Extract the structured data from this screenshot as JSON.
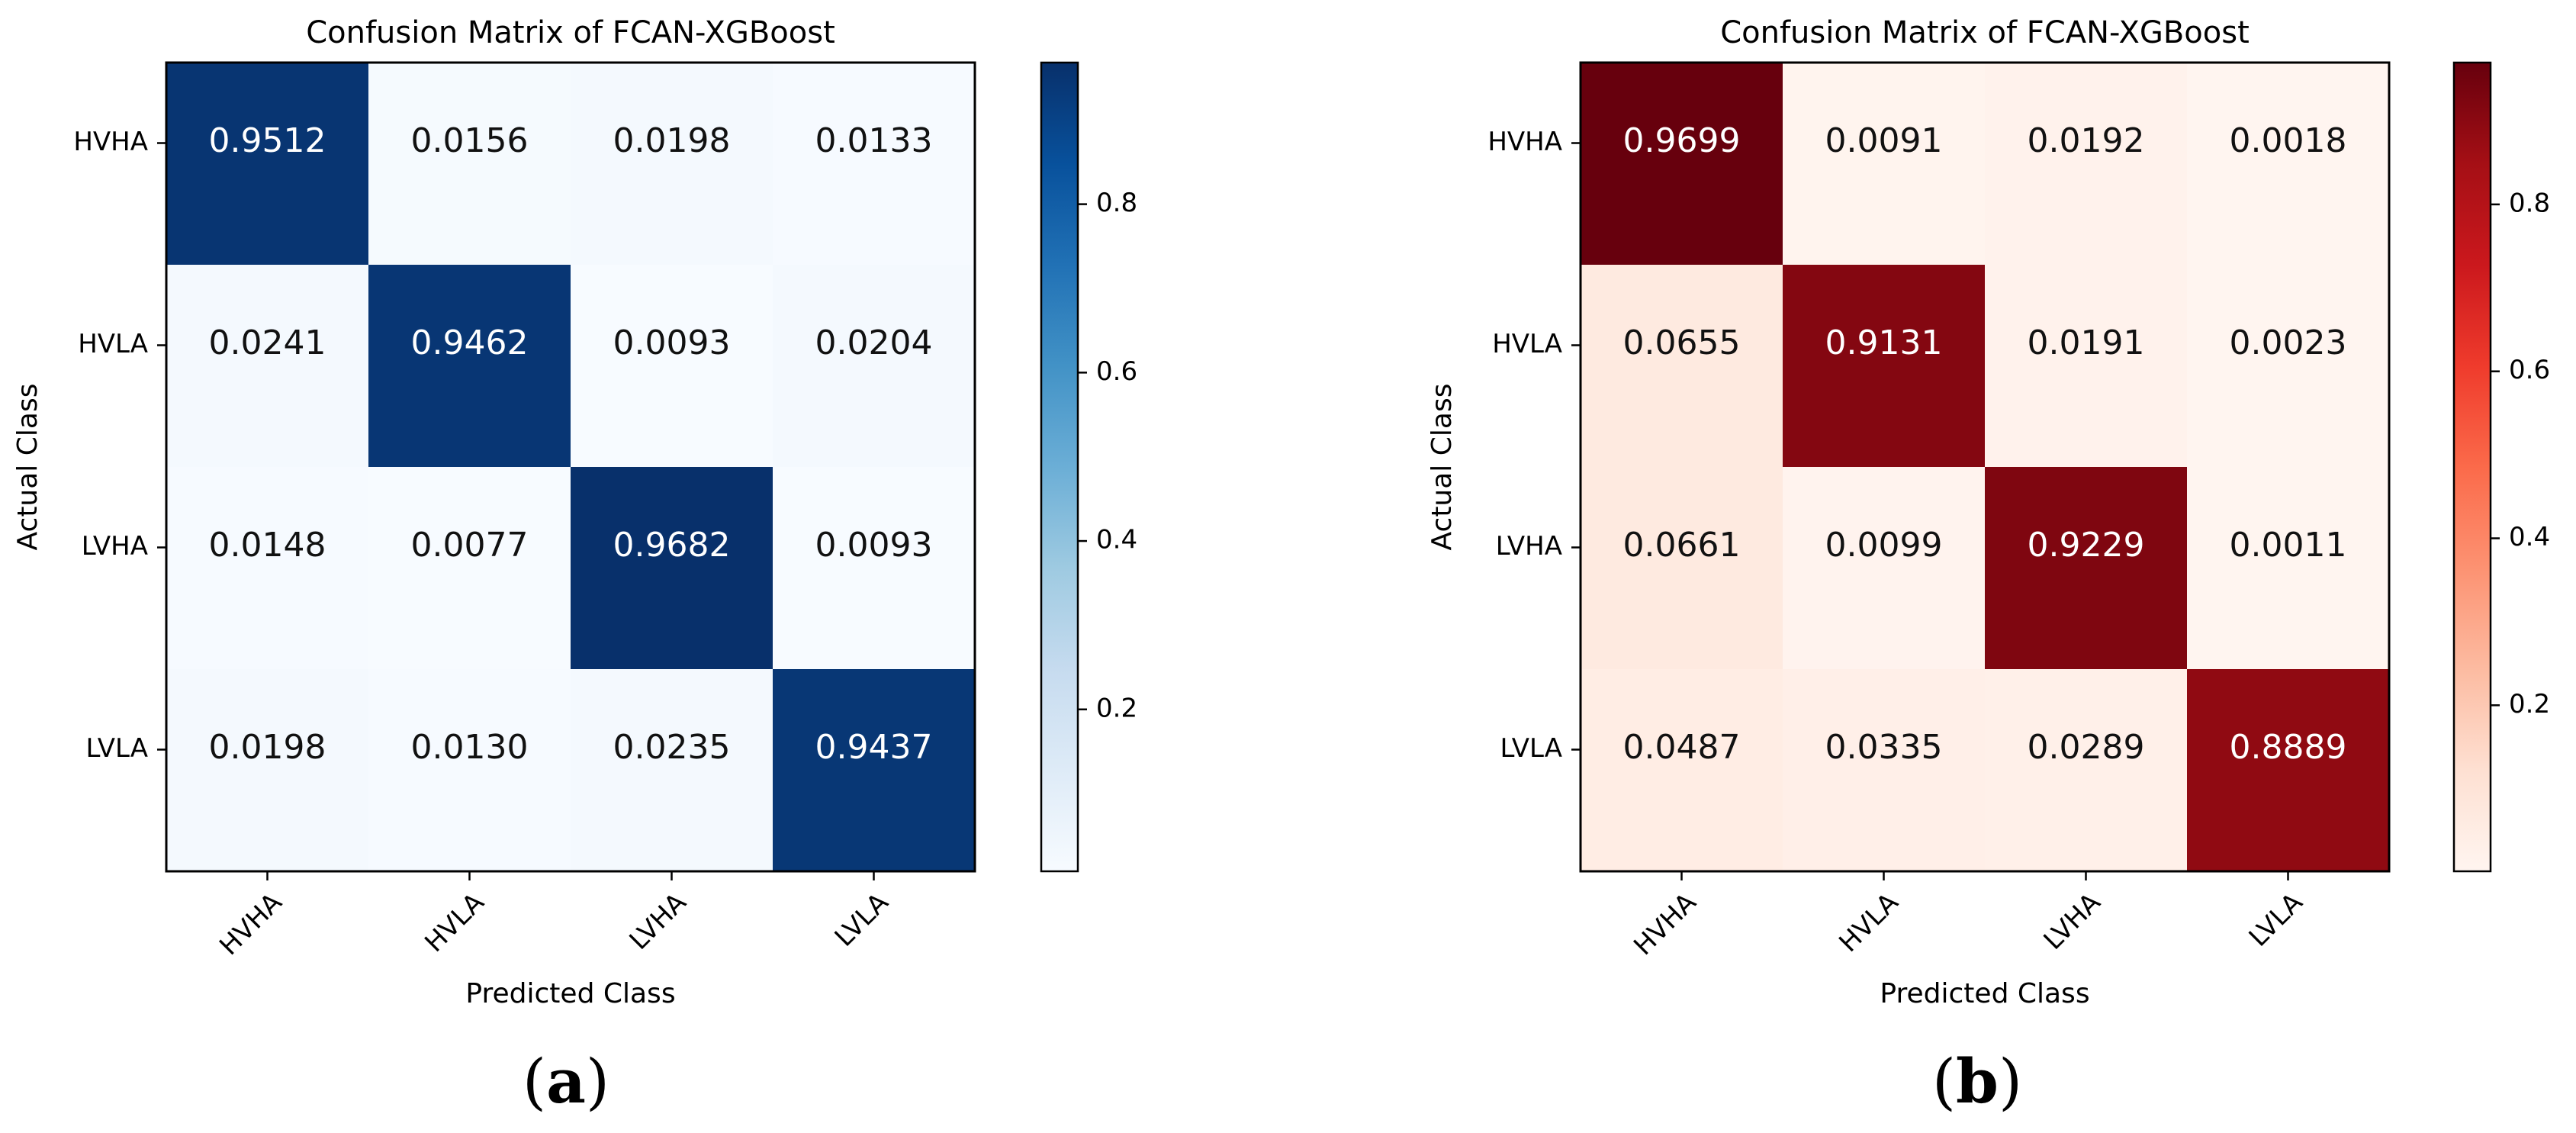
{
  "chart_data": [
    {
      "type": "heatmap",
      "title": "Confusion Matrix of FCAN-XGBoost",
      "xlabel": "Predicted Class",
      "ylabel": "Actual Class",
      "x_categories": [
        "HVHA",
        "HVLA",
        "LVHA",
        "LVLA"
      ],
      "y_categories": [
        "HVHA",
        "HVLA",
        "LVHA",
        "LVLA"
      ],
      "values": [
        [
          0.9512,
          0.0156,
          0.0198,
          0.0133
        ],
        [
          0.0241,
          0.9462,
          0.0093,
          0.0204
        ],
        [
          0.0148,
          0.0077,
          0.9682,
          0.0093
        ],
        [
          0.0198,
          0.013,
          0.0235,
          0.9437
        ]
      ],
      "value_labels": [
        [
          "0.9512",
          "0.0156",
          "0.0198",
          "0.0133"
        ],
        [
          "0.0241",
          "0.9462",
          "0.0093",
          "0.0204"
        ],
        [
          "0.0148",
          "0.0077",
          "0.9682",
          "0.0093"
        ],
        [
          "0.0198",
          "0.0130",
          "0.0235",
          "0.9437"
        ]
      ],
      "colormap": "Blues",
      "colorbar_range": [
        0.0077,
        0.9682
      ],
      "colorbar_ticks": [
        0.2,
        0.4,
        0.6,
        0.8
      ],
      "colorbar_tick_labels": [
        "0.2",
        "0.4",
        "0.6",
        "0.8"
      ],
      "caption_label": "a"
    },
    {
      "type": "heatmap",
      "title": "Confusion Matrix of FCAN-XGBoost",
      "xlabel": "Predicted Class",
      "ylabel": "Actual Class",
      "x_categories": [
        "HVHA",
        "HVLA",
        "LVHA",
        "LVLA"
      ],
      "y_categories": [
        "HVHA",
        "HVLA",
        "LVHA",
        "LVLA"
      ],
      "values": [
        [
          0.9699,
          0.0091,
          0.0192,
          0.0018
        ],
        [
          0.0655,
          0.9131,
          0.0191,
          0.0023
        ],
        [
          0.0661,
          0.0099,
          0.9229,
          0.0011
        ],
        [
          0.0487,
          0.0335,
          0.0289,
          0.8889
        ]
      ],
      "value_labels": [
        [
          "0.9699",
          "0.0091",
          "0.0192",
          "0.0018"
        ],
        [
          "0.0655",
          "0.9131",
          "0.0191",
          "0.0023"
        ],
        [
          "0.0661",
          "0.0099",
          "0.9229",
          "0.0011"
        ],
        [
          "0.0487",
          "0.0335",
          "0.0289",
          "0.8889"
        ]
      ],
      "colormap": "Reds",
      "colorbar_range": [
        0.0011,
        0.9699
      ],
      "colorbar_ticks": [
        0.2,
        0.4,
        0.6,
        0.8
      ],
      "colorbar_tick_labels": [
        "0.2",
        "0.4",
        "0.6",
        "0.8"
      ],
      "caption_label": "b"
    }
  ]
}
